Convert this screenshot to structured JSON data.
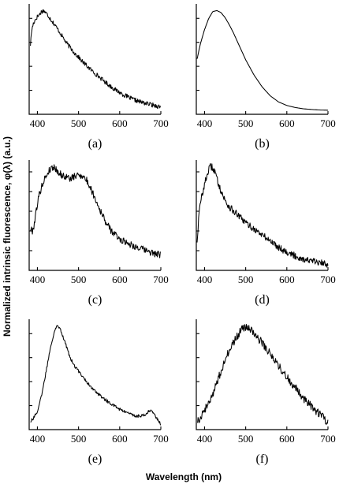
{
  "figure": {
    "ylabel": "Normalized intrinsic fluorescence, φ(λ) (a.u.)",
    "xlabel": "Wavelength (nm)"
  },
  "chart_data": [
    {
      "panel": "(a)",
      "type": "line",
      "noise": 0.022,
      "xlim": [
        380,
        700
      ],
      "xticks": [
        400,
        500,
        600,
        700
      ],
      "y_tick_count": 4,
      "series": [
        {
          "x": [
            383,
            386,
            390,
            395,
            400,
            405,
            410,
            415,
            420,
            428,
            440,
            455,
            470,
            490,
            510,
            530,
            550,
            570,
            590,
            610,
            630,
            650,
            670,
            690,
            700
          ],
          "y": [
            0.66,
            0.8,
            0.87,
            0.91,
            0.94,
            0.96,
            0.99,
            1.0,
            0.98,
            0.94,
            0.87,
            0.78,
            0.68,
            0.58,
            0.49,
            0.41,
            0.34,
            0.27,
            0.21,
            0.16,
            0.12,
            0.09,
            0.07,
            0.05,
            0.04
          ]
        }
      ]
    },
    {
      "panel": "(b)",
      "type": "line",
      "noise": 0,
      "xlim": [
        380,
        700
      ],
      "xticks": [
        400,
        500,
        600,
        700
      ],
      "y_tick_count": 4,
      "series": [
        {
          "x": [
            382,
            390,
            400,
            410,
            420,
            430,
            440,
            450,
            460,
            470,
            480,
            500,
            520,
            540,
            560,
            580,
            600,
            620,
            640,
            660,
            680,
            700
          ],
          "y": [
            0.52,
            0.67,
            0.81,
            0.92,
            0.99,
            1.0,
            0.98,
            0.93,
            0.86,
            0.78,
            0.69,
            0.51,
            0.36,
            0.24,
            0.15,
            0.09,
            0.055,
            0.035,
            0.022,
            0.015,
            0.01,
            0.008
          ]
        }
      ]
    },
    {
      "panel": "(c)",
      "type": "line",
      "noise": 0.035,
      "xlim": [
        380,
        700
      ],
      "xticks": [
        400,
        500,
        600,
        700
      ],
      "y_tick_count": 5,
      "series": [
        {
          "x": [
            383,
            388,
            392,
            397,
            402,
            410,
            420,
            430,
            440,
            450,
            460,
            470,
            480,
            490,
            500,
            510,
            520,
            530,
            540,
            550,
            560,
            570,
            580,
            600,
            620,
            640,
            660,
            680,
            700
          ],
          "y": [
            0.38,
            0.36,
            0.42,
            0.56,
            0.68,
            0.8,
            0.9,
            0.97,
            1.0,
            0.95,
            0.91,
            0.9,
            0.88,
            0.9,
            0.92,
            0.91,
            0.86,
            0.78,
            0.69,
            0.59,
            0.5,
            0.42,
            0.36,
            0.28,
            0.24,
            0.2,
            0.17,
            0.14,
            0.12
          ]
        }
      ]
    },
    {
      "panel": "(d)",
      "type": "line",
      "noise": 0.035,
      "xlim": [
        380,
        700
      ],
      "xticks": [
        400,
        500,
        600,
        700
      ],
      "y_tick_count": 5,
      "series": [
        {
          "x": [
            382,
            386,
            390,
            395,
            400,
            405,
            410,
            415,
            420,
            425,
            430,
            440,
            450,
            460,
            480,
            500,
            520,
            540,
            560,
            580,
            600,
            620,
            640,
            660,
            680,
            700
          ],
          "y": [
            0.26,
            0.5,
            0.64,
            0.74,
            0.82,
            0.9,
            0.97,
            1.0,
            0.99,
            0.95,
            0.88,
            0.76,
            0.66,
            0.6,
            0.52,
            0.44,
            0.38,
            0.32,
            0.26,
            0.2,
            0.15,
            0.11,
            0.08,
            0.06,
            0.04,
            0.03
          ]
        }
      ]
    },
    {
      "panel": "(e)",
      "type": "line",
      "noise": 0.015,
      "xlim": [
        380,
        700
      ],
      "xticks": [
        400,
        500,
        600,
        700
      ],
      "y_tick_count": 4,
      "series": [
        {
          "x": [
            383,
            390,
            400,
            410,
            420,
            430,
            440,
            445,
            450,
            455,
            460,
            470,
            480,
            490,
            500,
            510,
            520,
            540,
            560,
            580,
            600,
            620,
            640,
            660,
            670,
            675,
            680,
            690,
            700
          ],
          "y": [
            0.05,
            0.08,
            0.15,
            0.3,
            0.52,
            0.75,
            0.93,
            0.99,
            1.0,
            0.98,
            0.92,
            0.8,
            0.68,
            0.6,
            0.55,
            0.5,
            0.44,
            0.35,
            0.28,
            0.22,
            0.17,
            0.13,
            0.1,
            0.11,
            0.15,
            0.16,
            0.14,
            0.08,
            0.02
          ]
        }
      ]
    },
    {
      "panel": "(f)",
      "type": "line",
      "noise": 0.04,
      "xlim": [
        380,
        700
      ],
      "xticks": [
        400,
        500,
        600,
        700
      ],
      "y_tick_count": 4,
      "series": [
        {
          "x": [
            383,
            400,
            420,
            440,
            460,
            480,
            490,
            500,
            510,
            520,
            540,
            560,
            580,
            600,
            620,
            640,
            660,
            680,
            700
          ],
          "y": [
            0.05,
            0.16,
            0.32,
            0.55,
            0.76,
            0.9,
            0.96,
            0.99,
            0.97,
            0.93,
            0.83,
            0.72,
            0.6,
            0.49,
            0.39,
            0.28,
            0.2,
            0.12,
            0.04
          ]
        }
      ]
    }
  ]
}
